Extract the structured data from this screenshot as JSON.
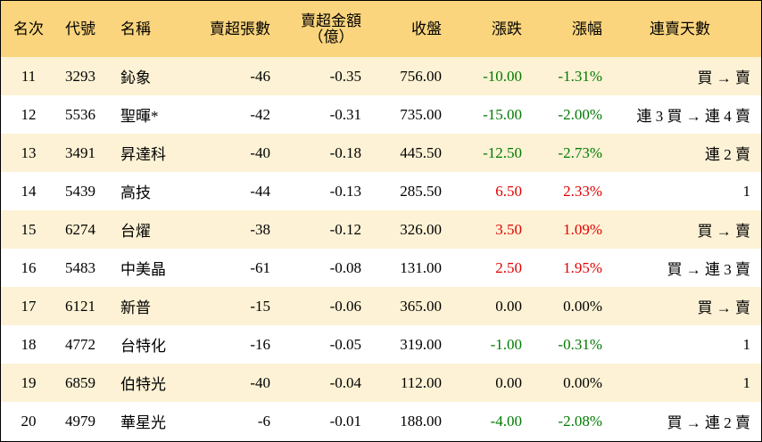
{
  "headers": {
    "rank": "名次",
    "code": "代號",
    "name": "名稱",
    "net_sell_shares": "賣超張數",
    "net_sell_amount_line1": "賣超金額",
    "net_sell_amount_line2": "（億）",
    "close": "收盤",
    "change": "漲跌",
    "change_pct": "漲幅",
    "consecutive_days": "連賣天數"
  },
  "colors": {
    "header_bg": "#fbd57d",
    "stripe_bg": "#fdf2d5",
    "up": "#e00000",
    "down": "#007a00"
  },
  "rows": [
    {
      "rank": "11",
      "code": "3293",
      "name": "鈊象",
      "shares": "-46",
      "amount": "-0.35",
      "close": "756.00",
      "change": "-10.00",
      "pct": "-1.31%",
      "days": "買 → 賣",
      "dir": "down"
    },
    {
      "rank": "12",
      "code": "5536",
      "name": "聖暉*",
      "shares": "-42",
      "amount": "-0.31",
      "close": "735.00",
      "change": "-15.00",
      "pct": "-2.00%",
      "days": "連 3 買 → 連 4 賣",
      "dir": "down"
    },
    {
      "rank": "13",
      "code": "3491",
      "name": "昇達科",
      "shares": "-40",
      "amount": "-0.18",
      "close": "445.50",
      "change": "-12.50",
      "pct": "-2.73%",
      "days": "連 2 賣",
      "dir": "down"
    },
    {
      "rank": "14",
      "code": "5439",
      "name": "高技",
      "shares": "-44",
      "amount": "-0.13",
      "close": "285.50",
      "change": "6.50",
      "pct": "2.33%",
      "days": "1",
      "dir": "up"
    },
    {
      "rank": "15",
      "code": "6274",
      "name": "台燿",
      "shares": "-38",
      "amount": "-0.12",
      "close": "326.00",
      "change": "3.50",
      "pct": "1.09%",
      "days": "買 → 賣",
      "dir": "up"
    },
    {
      "rank": "16",
      "code": "5483",
      "name": "中美晶",
      "shares": "-61",
      "amount": "-0.08",
      "close": "131.00",
      "change": "2.50",
      "pct": "1.95%",
      "days": "買 → 連 3 賣",
      "dir": "up"
    },
    {
      "rank": "17",
      "code": "6121",
      "name": "新普",
      "shares": "-15",
      "amount": "-0.06",
      "close": "365.00",
      "change": "0.00",
      "pct": "0.00%",
      "days": "買 → 賣",
      "dir": "flat"
    },
    {
      "rank": "18",
      "code": "4772",
      "name": "台特化",
      "shares": "-16",
      "amount": "-0.05",
      "close": "319.00",
      "change": "-1.00",
      "pct": "-0.31%",
      "days": "1",
      "dir": "down"
    },
    {
      "rank": "19",
      "code": "6859",
      "name": "伯特光",
      "shares": "-40",
      "amount": "-0.04",
      "close": "112.00",
      "change": "0.00",
      "pct": "0.00%",
      "days": "1",
      "dir": "flat"
    },
    {
      "rank": "20",
      "code": "4979",
      "name": "華星光",
      "shares": "-6",
      "amount": "-0.01",
      "close": "188.00",
      "change": "-4.00",
      "pct": "-2.08%",
      "days": "買 → 連 2 賣",
      "dir": "down"
    }
  ]
}
